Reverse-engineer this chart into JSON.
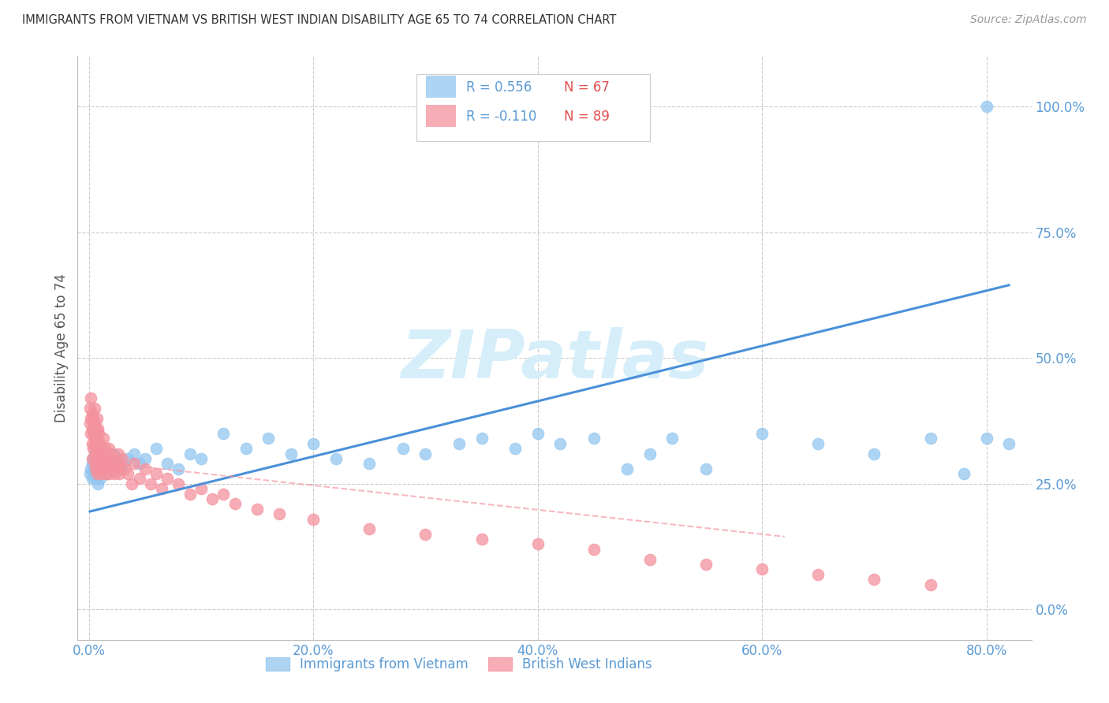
{
  "title": "IMMIGRANTS FROM VIETNAM VS BRITISH WEST INDIAN DISABILITY AGE 65 TO 74 CORRELATION CHART",
  "source": "Source: ZipAtlas.com",
  "ylabel_label": "Disability Age 65 to 74",
  "x_tick_labels": [
    "0.0%",
    "20.0%",
    "40.0%",
    "60.0%",
    "80.0%"
  ],
  "x_tick_values": [
    0.0,
    0.2,
    0.4,
    0.6,
    0.8
  ],
  "y_tick_labels": [
    "0.0%",
    "25.0%",
    "50.0%",
    "75.0%",
    "100.0%"
  ],
  "y_tick_values": [
    0.0,
    0.25,
    0.5,
    0.75,
    1.0
  ],
  "xlim": [
    -0.01,
    0.84
  ],
  "ylim": [
    -0.06,
    1.1
  ],
  "vietnam_R": 0.556,
  "vietnam_N": 67,
  "bwi_R": -0.11,
  "bwi_N": 89,
  "vietnam_color": "#93C6F0",
  "bwi_color": "#F4929E",
  "trendline_vietnam_color": "#4A90D9",
  "trendline_bwi_color": "#F4929E",
  "watermark": "ZIPatlas",
  "watermark_color": "#D6EEFA",
  "background_color": "#FFFFFF",
  "grid_color": "#CCCCCC",
  "title_color": "#333333",
  "axis_tick_color": "#5B9BD5",
  "legend_R_color": "#5B9BD5",
  "legend_N_color": "#E05050",
  "vietnam_scatter_x": [
    0.001,
    0.002,
    0.003,
    0.003,
    0.004,
    0.004,
    0.005,
    0.005,
    0.006,
    0.006,
    0.007,
    0.007,
    0.008,
    0.008,
    0.009,
    0.009,
    0.01,
    0.01,
    0.011,
    0.012,
    0.013,
    0.014,
    0.015,
    0.016,
    0.017,
    0.018,
    0.02,
    0.022,
    0.025,
    0.028,
    0.03,
    0.035,
    0.04,
    0.045,
    0.05,
    0.06,
    0.07,
    0.08,
    0.09,
    0.1,
    0.12,
    0.14,
    0.16,
    0.18,
    0.2,
    0.22,
    0.25,
    0.28,
    0.3,
    0.33,
    0.35,
    0.38,
    0.4,
    0.42,
    0.45,
    0.48,
    0.5,
    0.52,
    0.55,
    0.6,
    0.65,
    0.7,
    0.75,
    0.78,
    0.8,
    0.82,
    0.8
  ],
  "vietnam_scatter_y": [
    0.27,
    0.28,
    0.26,
    0.29,
    0.27,
    0.3,
    0.28,
    0.31,
    0.26,
    0.29,
    0.27,
    0.3,
    0.28,
    0.25,
    0.27,
    0.3,
    0.26,
    0.29,
    0.28,
    0.3,
    0.31,
    0.28,
    0.29,
    0.27,
    0.3,
    0.28,
    0.29,
    0.31,
    0.3,
    0.28,
    0.29,
    0.3,
    0.31,
    0.29,
    0.3,
    0.32,
    0.29,
    0.28,
    0.31,
    0.3,
    0.35,
    0.32,
    0.34,
    0.31,
    0.33,
    0.3,
    0.29,
    0.32,
    0.31,
    0.33,
    0.34,
    0.32,
    0.35,
    0.33,
    0.34,
    0.28,
    0.31,
    0.34,
    0.28,
    0.35,
    0.33,
    0.31,
    0.34,
    0.27,
    0.34,
    0.33,
    1.0
  ],
  "bwi_scatter_x": [
    0.001,
    0.001,
    0.002,
    0.002,
    0.002,
    0.003,
    0.003,
    0.003,
    0.003,
    0.004,
    0.004,
    0.004,
    0.005,
    0.005,
    0.005,
    0.005,
    0.006,
    0.006,
    0.006,
    0.006,
    0.007,
    0.007,
    0.007,
    0.007,
    0.008,
    0.008,
    0.008,
    0.009,
    0.009,
    0.009,
    0.01,
    0.01,
    0.01,
    0.011,
    0.011,
    0.012,
    0.012,
    0.013,
    0.013,
    0.014,
    0.014,
    0.015,
    0.015,
    0.016,
    0.016,
    0.017,
    0.018,
    0.018,
    0.019,
    0.02,
    0.021,
    0.022,
    0.023,
    0.024,
    0.025,
    0.026,
    0.027,
    0.028,
    0.03,
    0.032,
    0.035,
    0.038,
    0.04,
    0.045,
    0.05,
    0.055,
    0.06,
    0.065,
    0.07,
    0.08,
    0.09,
    0.1,
    0.11,
    0.12,
    0.13,
    0.15,
    0.17,
    0.2,
    0.25,
    0.3,
    0.35,
    0.4,
    0.45,
    0.5,
    0.55,
    0.6,
    0.65,
    0.7,
    0.75
  ],
  "bwi_scatter_y": [
    0.37,
    0.4,
    0.35,
    0.38,
    0.42,
    0.3,
    0.36,
    0.39,
    0.33,
    0.35,
    0.32,
    0.38,
    0.29,
    0.34,
    0.37,
    0.4,
    0.28,
    0.33,
    0.36,
    0.31,
    0.3,
    0.35,
    0.38,
    0.27,
    0.32,
    0.36,
    0.29,
    0.31,
    0.35,
    0.28,
    0.33,
    0.3,
    0.27,
    0.32,
    0.28,
    0.31,
    0.29,
    0.3,
    0.34,
    0.28,
    0.32,
    0.29,
    0.27,
    0.31,
    0.28,
    0.3,
    0.27,
    0.32,
    0.29,
    0.31,
    0.28,
    0.3,
    0.27,
    0.29,
    0.28,
    0.31,
    0.27,
    0.29,
    0.3,
    0.28,
    0.27,
    0.25,
    0.29,
    0.26,
    0.28,
    0.25,
    0.27,
    0.24,
    0.26,
    0.25,
    0.23,
    0.24,
    0.22,
    0.23,
    0.21,
    0.2,
    0.19,
    0.18,
    0.16,
    0.15,
    0.14,
    0.13,
    0.12,
    0.1,
    0.09,
    0.08,
    0.07,
    0.06,
    0.05
  ],
  "trendline_viet_x0": 0.001,
  "trendline_viet_x1": 0.82,
  "trendline_viet_y0": 0.195,
  "trendline_viet_y1": 0.645,
  "trendline_bwi_x0": 0.001,
  "trendline_bwi_x1": 0.62,
  "trendline_bwi_y0": 0.295,
  "trendline_bwi_y1": 0.145
}
